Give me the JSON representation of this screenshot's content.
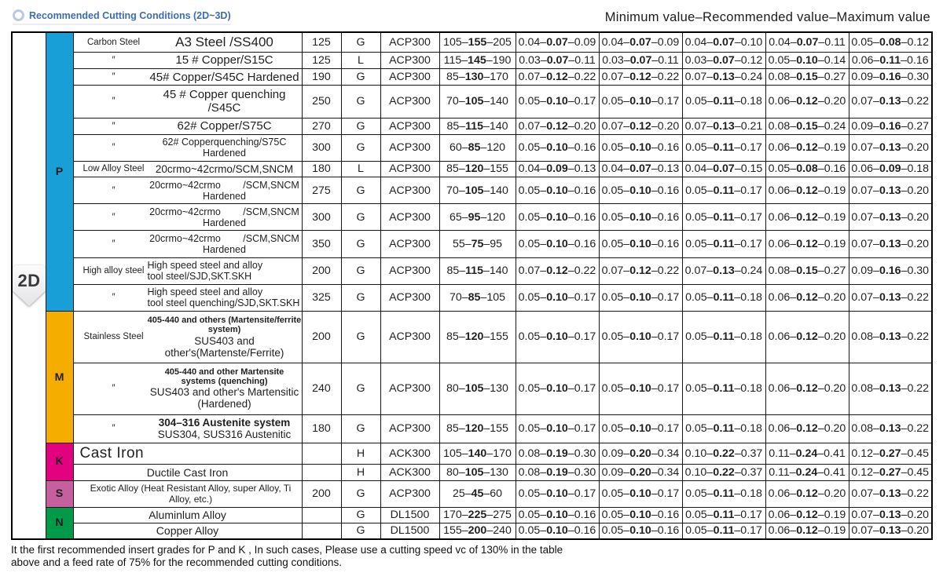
{
  "header": {
    "title": "Recommended Cutting Conditions (2D~3D)",
    "legend": "Minimum value–Recommended value–Maximum value"
  },
  "dimension_label": "2D",
  "groups": [
    {
      "letter": "P",
      "color": "#189fd7"
    },
    {
      "letter": "M",
      "color": "#f5ad00"
    },
    {
      "letter": "K",
      "color": "#e3017f"
    },
    {
      "letter": "S",
      "color": "#c55f9e"
    },
    {
      "letter": "N",
      "color": "#019a48"
    }
  ],
  "table": {
    "rows": [
      {
        "category": "Carbon Steel",
        "name": "A3 Steel /SS400",
        "hb": "125",
        "cond": "G",
        "grade": "ACP300",
        "vc": "105–155–205",
        "f": [
          "0.04–0.07–0.09",
          "0.04–0.07–0.09",
          "0.04–0.07–0.10",
          "0.04–0.07–0.11",
          "0.05–0.08–0.12"
        ]
      },
      {
        "category": "″",
        "name": "15 # Copper/S15C",
        "hb": "125",
        "cond": "L",
        "grade": "ACP300",
        "vc": "115–145–190",
        "f": [
          "0.03–0.07–0.11",
          "0.03–0.07–0.11",
          "0.03–0.07–0.12",
          "0.05–0.10–0.14",
          "0.06–0.11–0.16"
        ]
      },
      {
        "category": "″",
        "name": "45# Copper/S45C Hardened",
        "hb": "190",
        "cond": "G",
        "grade": "ACP300",
        "vc": "85–130–170",
        "f": [
          "0.07–0.12–0.22",
          "0.07–0.12–0.22",
          "0.07–0.13–0.24",
          "0.08–0.15–0.27",
          "0.09–0.16–0.30"
        ]
      },
      {
        "category": "″",
        "name": "45 # Copper quenching /S45C",
        "hb": "250",
        "cond": "G",
        "grade": "ACP300",
        "vc": "70–105–140",
        "f": [
          "0.05–0.10–0.17",
          "0.05–0.10–0.17",
          "0.05–0.11–0.18",
          "0.06–0.12–0.20",
          "0.07–0.13–0.22"
        ]
      },
      {
        "category": "″",
        "name": "62# Copper/S75C",
        "hb": "270",
        "cond": "G",
        "grade": "ACP300",
        "vc": "85–115–140",
        "f": [
          "0.07–0.12–0.20",
          "0.07–0.12–0.20",
          "0.07–0.13–0.21",
          "0.08–0.15–0.24",
          "0.09–0.16–0.27"
        ]
      },
      {
        "category": "″",
        "name": "62# Copperquenching/S75C Hardened",
        "hb": "300",
        "cond": "G",
        "grade": "ACP300",
        "vc": "60–85–120",
        "f": [
          "0.05–0.10–0.16",
          "0.05–0.10–0.16",
          "0.05–0.11–0.17",
          "0.06–0.12–0.19",
          "0.07–0.13–0.20"
        ]
      },
      {
        "category": "Low Alloy Steel",
        "name": "20crmo~42crmo/SCM,SNCM",
        "hb": "180",
        "cond": "L",
        "grade": "ACP300",
        "vc": "85–120–155",
        "f": [
          "0.04–0.09–0.13",
          "0.04–0.07–0.13",
          "0.04–0.07–0.15",
          "0.05–0.08–0.16",
          "0.06–0.09–0.18"
        ]
      },
      {
        "category": "″",
        "name": "20crmo~42crmo   /SCM,SNCM Hardened",
        "hb": "275",
        "cond": "G",
        "grade": "ACP300",
        "vc": "70–105–140",
        "f": [
          "0.05–0.10–0.16",
          "0.05–0.10–0.16",
          "0.05–0.11–0.17",
          "0.06–0.12–0.19",
          "0.07–0.13–0.20"
        ]
      },
      {
        "category": "″",
        "name": "20crmo~42crmo   /SCM,SNCM Hardened",
        "hb": "300",
        "cond": "G",
        "grade": "ACP300",
        "vc": "65–95–120",
        "f": [
          "0.05–0.10–0.16",
          "0.05–0.10–0.16",
          "0.05–0.11–0.17",
          "0.06–0.12–0.19",
          "0.07–0.13–0.20"
        ]
      },
      {
        "category": "″",
        "name": "20crmo~42crmo   /SCM,SNCM Hardened",
        "hb": "350",
        "cond": "G",
        "grade": "ACP300",
        "vc": "55–75–95",
        "f": [
          "0.05–0.10–0.16",
          "0.05–0.10–0.16",
          "0.05–0.11–0.17",
          "0.06–0.12–0.19",
          "0.07–0.13–0.20"
        ]
      },
      {
        "category": "High alloy steel",
        "name": "High speed steel and alloy",
        "name2": "tool steel/SJD,SKT.SKH",
        "hb": "200",
        "cond": "G",
        "grade": "ACP300",
        "vc": "85–115–140",
        "f": [
          "0.07–0.12–0.22",
          "0.07–0.12–0.22",
          "0.07–0.13–0.24",
          "0.08–0.15–0.27",
          "0.09–0.16–0.30"
        ]
      },
      {
        "category": "″",
        "name": "High speed steel and alloy",
        "name2": "tool steel quenching/SJD,SKT.SKH",
        "hb": "325",
        "cond": "G",
        "grade": "ACP300",
        "vc": "70–85–105",
        "f": [
          "0.05–0.10–0.17",
          "0.05–0.10–0.17",
          "0.05–0.11–0.18",
          "0.06–0.12–0.20",
          "0.07–0.13–0.22"
        ]
      },
      {
        "category": "Stainless Steel",
        "name": "405-440 and others (Martensite/ferrite system)",
        "name2": "SUS403 and other's(Martenste/Ferrite)",
        "hb": "200",
        "cond": "G",
        "grade": "ACP300",
        "vc": "85–120–155",
        "f": [
          "0.05–0.10–0.17",
          "0.05–0.10–0.17",
          "0.05–0.11–0.18",
          "0.06–0.12–0.20",
          "0.08–0.13–0.22"
        ]
      },
      {
        "category": "″",
        "name": "405-440 and other Martensite systems (quenching)",
        "name2": "SUS403 and other's Martensitic (Hardened)",
        "hb": "240",
        "cond": "G",
        "grade": "ACP300",
        "vc": "80–105–130",
        "f": [
          "0.05–0.10–0.17",
          "0.05–0.10–0.17",
          "0.05–0.11–0.18",
          "0.06–0.12–0.20",
          "0.08–0.13–0.22"
        ]
      },
      {
        "category": "″",
        "name": "304–316 Austenite system",
        "name2": "SUS304, SUS316 Austenitic",
        "hb": "180",
        "cond": "G",
        "grade": "ACP300",
        "vc": "85–120–155",
        "f": [
          "0.05–0.10–0.17",
          "0.05–0.10–0.17",
          "0.05–0.11–0.18",
          "0.06–0.12–0.20",
          "0.08–0.13–0.22"
        ]
      },
      {
        "category": "",
        "name": "Cast Iron",
        "hb": "",
        "cond": "H",
        "grade": "ACK300",
        "vc": "105–140–170",
        "f": [
          "0.08–0.19–0.30",
          "0.09–0.20–0.34",
          "0.10–0.22–0.37",
          "0.11–0.24–0.41",
          "0.12–0.27–0.45"
        ]
      },
      {
        "category": "",
        "name": "Ductile Cast Iron",
        "hb": "",
        "cond": "H",
        "grade": "ACK300",
        "vc": "80–105–130",
        "f": [
          "0.08–0.19–0.30",
          "0.09–0.20–0.34",
          "0.10–0.22–0.37",
          "0.11–0.24–0.41",
          "0.12–0.27–0.45"
        ]
      },
      {
        "category": "",
        "name": "Exotic Alloy (Heat Resistant Alloy, super Alloy, Ti Alloy, etc.)",
        "hb": "200",
        "cond": "G",
        "grade": "ACP300",
        "vc": "25–45–60",
        "f": [
          "0.05–0.10–0.17",
          "0.05–0.10–0.17",
          "0.05–0.11–0.18",
          "0.06–0.12–0.20",
          "0.07–0.13–0.22"
        ]
      },
      {
        "category": "",
        "name": "Aluminlum Alloy",
        "hb": "",
        "cond": "G",
        "grade": "DL1500",
        "vc": "170–225–275",
        "f": [
          "0.05–0.10–0.16",
          "0.05–0.10–0.16",
          "0.05–0.11–0.17",
          "0.06–0.12–0.19",
          "0.07–0.13–0.20"
        ]
      },
      {
        "category": "",
        "name": "Copper Alloy",
        "hb": "",
        "cond": "G",
        "grade": "DL1500",
        "vc": "155–200–240",
        "f": [
          "0.05–0.10–0.16",
          "0.05–0.10–0.16",
          "0.05–0.11–0.17",
          "0.06–0.12–0.19",
          "0.07–0.13–0.20"
        ]
      }
    ]
  },
  "footer": "It the first recommended insert grades for P and K , In such cases, Please use a cutting speed vc of 130% in the table\nabove and a feed rate of 75% for the recommended cutting conditions."
}
